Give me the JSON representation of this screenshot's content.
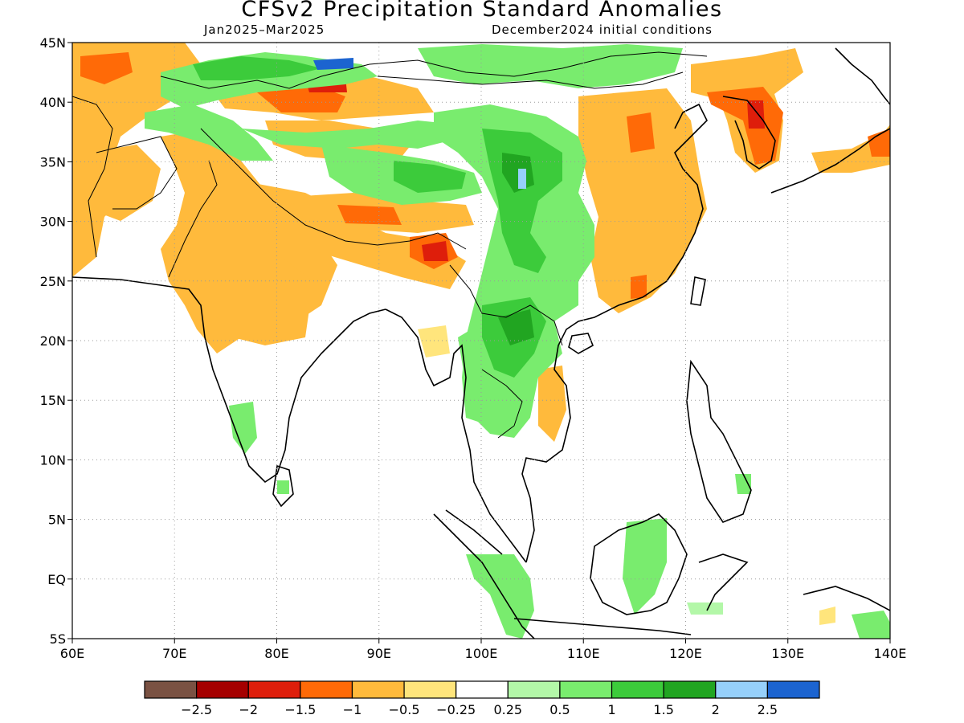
{
  "title": "CFSv2 Precipitation Standard Anomalies",
  "subtitle_left": "Jan2025–Mar2025",
  "subtitle_right": "December2024 initial conditions",
  "lat_ticks": [
    {
      "value": 45,
      "label": "45N"
    },
    {
      "value": 40,
      "label": "40N"
    },
    {
      "value": 35,
      "label": "35N"
    },
    {
      "value": 30,
      "label": "30N"
    },
    {
      "value": 25,
      "label": "25N"
    },
    {
      "value": 20,
      "label": "20N"
    },
    {
      "value": 15,
      "label": "15N"
    },
    {
      "value": 10,
      "label": "10N"
    },
    {
      "value": 5,
      "label": "5N"
    },
    {
      "value": 0,
      "label": "EQ"
    },
    {
      "value": -5,
      "label": "5S"
    }
  ],
  "lon_ticks": [
    {
      "value": 60,
      "label": "60E"
    },
    {
      "value": 70,
      "label": "70E"
    },
    {
      "value": 80,
      "label": "80E"
    },
    {
      "value": 90,
      "label": "90E"
    },
    {
      "value": 100,
      "label": "100E"
    },
    {
      "value": 110,
      "label": "110E"
    },
    {
      "value": 120,
      "label": "120E"
    },
    {
      "value": 130,
      "label": "130E"
    },
    {
      "value": 140,
      "label": "140E"
    }
  ],
  "colorbar": {
    "colors": [
      "#7a5243",
      "#a50000",
      "#de1e0b",
      "#ff6a07",
      "#ffba3c",
      "#ffe57c",
      "#ffffff",
      "#b3f7a8",
      "#79ec6e",
      "#3ccb3b",
      "#21a521",
      "#96d0fa",
      "#1c64d0"
    ],
    "labels": [
      "−2.5",
      "−2",
      "−1.5",
      "−1",
      "−0.5",
      "−0.25",
      "0.25",
      "0.5",
      "1",
      "1.5",
      "2",
      "2.5"
    ]
  },
  "colors": {
    "dry_light": "#ffba3c",
    "dry_mid": "#ff6a07",
    "dry_strong": "#de1e0b",
    "wet_light": "#b3f7a8",
    "wet_mid": "#79ec6e",
    "wet_strong": "#3ccb3b",
    "wet_very": "#21a521",
    "wet_extreme": "#1c64d0",
    "wet_pale_blue": "#96d0fa"
  }
}
